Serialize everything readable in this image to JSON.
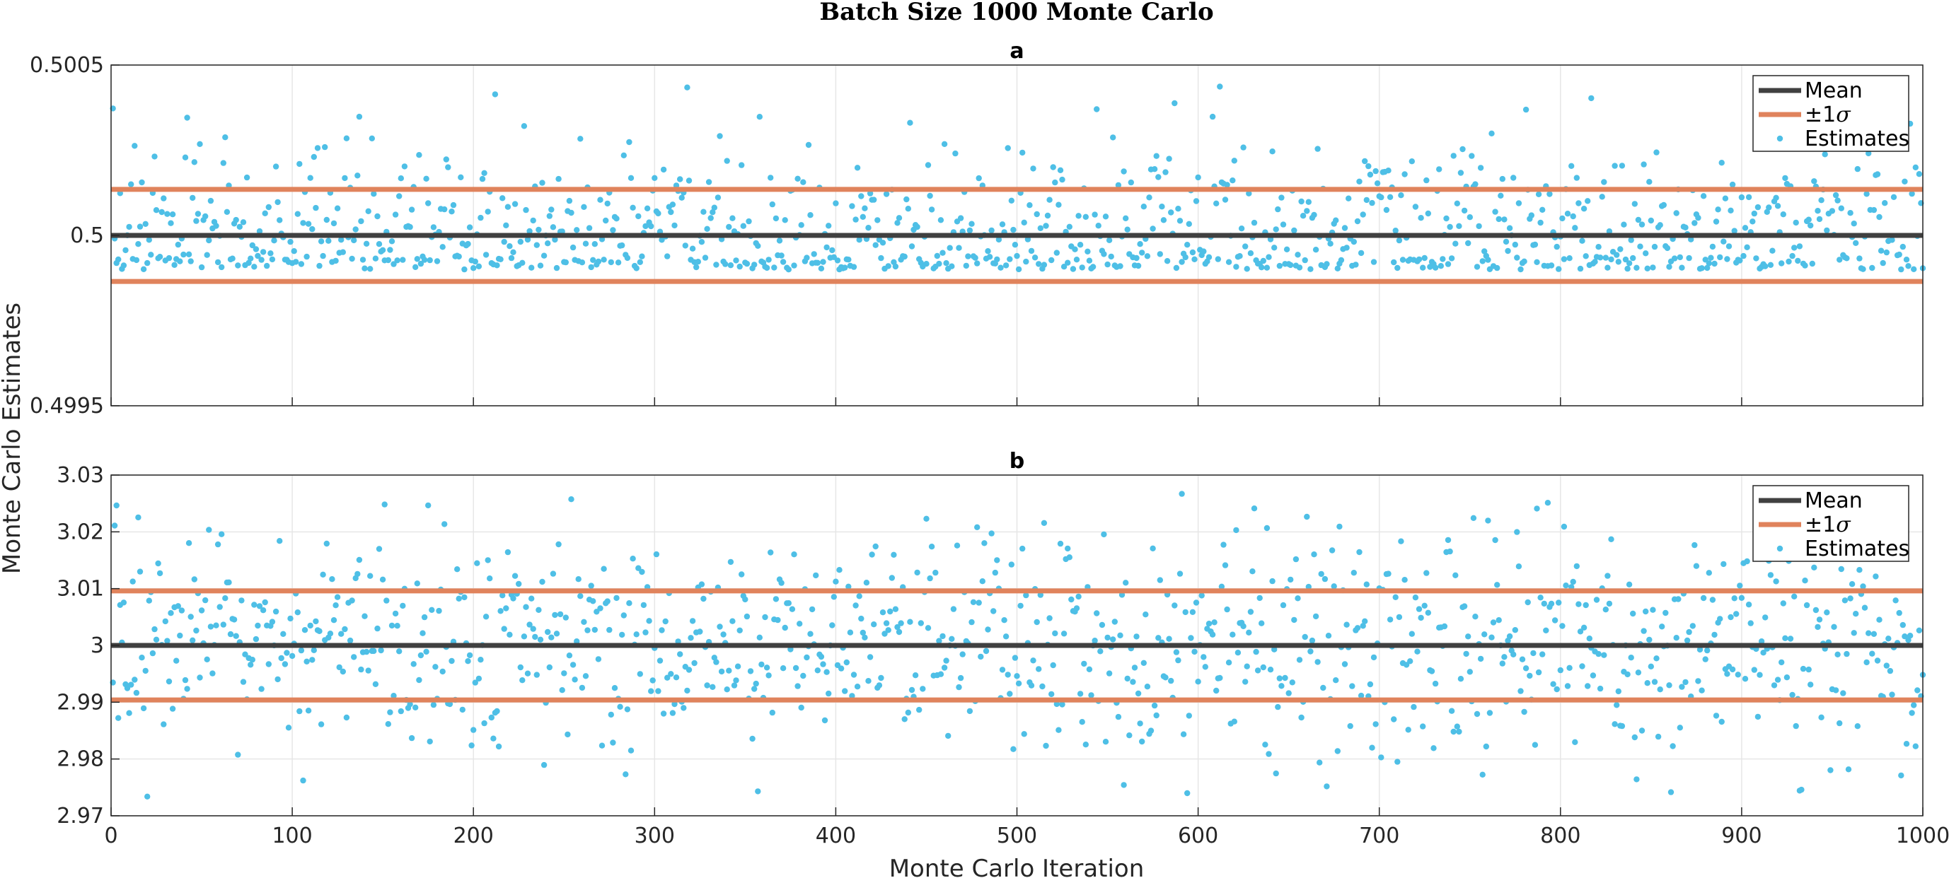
{
  "figure": {
    "title": "Batch Size 1000 Monte Carlo",
    "xlabel": "Monte Carlo Iteration",
    "ylabel": "Monte Carlo Estimates"
  },
  "legend": {
    "mean": "Mean",
    "sigma_prefix": "±1",
    "sigma_symbol": "σ",
    "estimates": "Estimates"
  },
  "colors": {
    "mean": "#404040",
    "sigma": "#e0835c",
    "estimates": "#4ebfe6"
  },
  "x_ticks": [
    "0",
    "100",
    "200",
    "300",
    "400",
    "500",
    "600",
    "700",
    "800",
    "900",
    "1000"
  ],
  "chart_data": [
    {
      "type": "scatter",
      "panel_label": "a",
      "xlim": [
        0,
        1000
      ],
      "ylim": [
        0.4995,
        0.5005
      ],
      "ytick_values": [
        0.4995,
        0.5,
        0.5005
      ],
      "ytick_labels": [
        "0.4995",
        "0.5",
        "0.5005"
      ],
      "n_points": 1000,
      "mean": 0.5,
      "sigma": 0.000135,
      "seed": 7,
      "grid": true,
      "legend_position": "top-right",
      "series": [
        {
          "name": "Mean",
          "kind": "line",
          "y": 0.5
        },
        {
          "name": "±1σ",
          "kind": "lines",
          "y": [
            0.500135,
            0.499865
          ]
        },
        {
          "name": "Estimates",
          "kind": "points",
          "x_range": [
            1,
            1000
          ],
          "y_range": [
            0.4999,
            0.50044
          ]
        }
      ]
    },
    {
      "type": "scatter",
      "panel_label": "b",
      "xlim": [
        0,
        1000
      ],
      "ylim": [
        2.97,
        3.03
      ],
      "ytick_values": [
        2.97,
        2.98,
        2.99,
        3.0,
        3.01,
        3.02,
        3.03
      ],
      "ytick_labels": [
        "2.97",
        "2.98",
        "2.99",
        "3",
        "3.01",
        "3.02",
        "3.03"
      ],
      "n_points": 1000,
      "mean": 3.0,
      "sigma": 0.0096,
      "seed": 13,
      "grid": true,
      "legend_position": "top-right",
      "series": [
        {
          "name": "Mean",
          "kind": "line",
          "y": 3.0
        },
        {
          "name": "±1σ",
          "kind": "lines",
          "y": [
            3.0096,
            2.9904
          ]
        },
        {
          "name": "Estimates",
          "kind": "points",
          "x_range": [
            1,
            1000
          ],
          "y_range": [
            2.973,
            3.027
          ]
        }
      ]
    }
  ]
}
